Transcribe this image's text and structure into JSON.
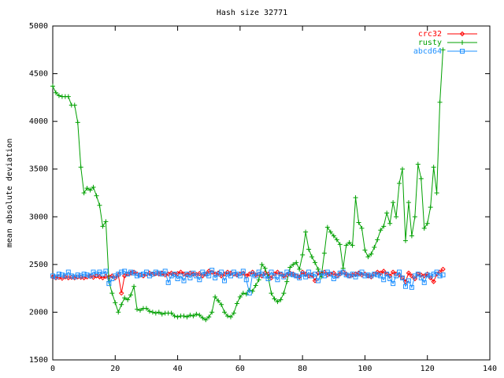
{
  "chart_data": {
    "type": "line",
    "title": "Hash size 32771",
    "y_label": "mean absolute deviation",
    "x": [
      0,
      1,
      2,
      3,
      4,
      5,
      6,
      7,
      8,
      9,
      10,
      11,
      12,
      13,
      14,
      15,
      16,
      17,
      18,
      19,
      20,
      21,
      22,
      23,
      24,
      25,
      26,
      27,
      28,
      29,
      30,
      31,
      32,
      33,
      34,
      35,
      36,
      37,
      38,
      39,
      40,
      41,
      42,
      43,
      44,
      45,
      46,
      47,
      48,
      49,
      50,
      51,
      52,
      53,
      54,
      55,
      56,
      57,
      58,
      59,
      60,
      61,
      62,
      63,
      64,
      65,
      66,
      67,
      68,
      69,
      70,
      71,
      72,
      73,
      74,
      75,
      76,
      77,
      78,
      79,
      80,
      81,
      82,
      83,
      84,
      85,
      86,
      87,
      88,
      89,
      90,
      91,
      92,
      93,
      94,
      95,
      96,
      97,
      98,
      99,
      100,
      101,
      102,
      103,
      104,
      105,
      106,
      107,
      108,
      109,
      110,
      111,
      112,
      113,
      114,
      115,
      116,
      117,
      118,
      119,
      120,
      121,
      122,
      123,
      124,
      125
    ],
    "series": [
      {
        "name": "crc32",
        "color": "#ff0000",
        "marker": "diamond",
        "values": [
          2370,
          2360,
          2365,
          2355,
          2370,
          2360,
          2365,
          2360,
          2370,
          2365,
          2360,
          2370,
          2375,
          2365,
          2380,
          2370,
          2360,
          2375,
          2370,
          2380,
          2360,
          2390,
          2200,
          2380,
          2400,
          2410,
          2420,
          2400,
          2390,
          2380,
          2400,
          2410,
          2395,
          2405,
          2400,
          2410,
          2390,
          2400,
          2410,
          2395,
          2405,
          2420,
          2400,
          2390,
          2410,
          2400,
          2395,
          2405,
          2380,
          2400,
          2430,
          2420,
          2400,
          2410,
          2380,
          2400,
          2420,
          2410,
          2400,
          2390,
          2400,
          2410,
          2380,
          2400,
          2420,
          2390,
          2400,
          2380,
          2410,
          2400,
          2360,
          2400,
          2420,
          2400,
          2380,
          2390,
          2410,
          2400,
          2380,
          2370,
          2420,
          2400,
          2380,
          2390,
          2330,
          2410,
          2400,
          2420,
          2390,
          2400,
          2410,
          2380,
          2400,
          2420,
          2400,
          2380,
          2390,
          2400,
          2410,
          2390,
          2400,
          2380,
          2370,
          2400,
          2420,
          2410,
          2430,
          2400,
          2380,
          2420,
          2400,
          2390,
          2360,
          2320,
          2410,
          2380,
          2350,
          2400,
          2390,
          2380,
          2400,
          2360,
          2320,
          2400,
          2420,
          2450
        ]
      },
      {
        "name": "rusty",
        "color": "#00a000",
        "marker": "plus",
        "values": [
          4370,
          4300,
          4270,
          4260,
          4260,
          4260,
          4170,
          4170,
          3990,
          3520,
          3250,
          3300,
          3280,
          3310,
          3220,
          3120,
          2900,
          2950,
          2320,
          2200,
          2100,
          2000,
          2080,
          2150,
          2130,
          2180,
          2270,
          2030,
          2020,
          2040,
          2040,
          2010,
          2000,
          1990,
          2000,
          1980,
          1990,
          1990,
          1990,
          1960,
          1950,
          1960,
          1960,
          1950,
          1970,
          1960,
          1980,
          1970,
          1940,
          1920,
          1950,
          2000,
          2160,
          2120,
          2080,
          2000,
          1960,
          1950,
          1990,
          2090,
          2160,
          2200,
          2190,
          2230,
          2220,
          2280,
          2340,
          2500,
          2460,
          2370,
          2200,
          2140,
          2110,
          2130,
          2200,
          2320,
          2470,
          2500,
          2520,
          2450,
          2600,
          2840,
          2660,
          2580,
          2520,
          2450,
          2370,
          2620,
          2890,
          2840,
          2800,
          2760,
          2710,
          2460,
          2700,
          2730,
          2700,
          3200,
          2940,
          2880,
          2650,
          2580,
          2610,
          2680,
          2760,
          2860,
          2900,
          3040,
          2930,
          3150,
          3000,
          3350,
          3500,
          2750,
          3150,
          2800,
          3000,
          3550,
          3400,
          2880,
          2930,
          3100,
          3520,
          3250,
          4200,
          4750
        ]
      },
      {
        "name": "abcd64",
        "color": "#1e90ff",
        "marker": "square",
        "values": [
          2380,
          2370,
          2400,
          2390,
          2380,
          2420,
          2380,
          2370,
          2390,
          2380,
          2400,
          2390,
          2380,
          2420,
          2400,
          2420,
          2400,
          2430,
          2300,
          2350,
          2380,
          2400,
          2420,
          2430,
          2400,
          2420,
          2410,
          2380,
          2390,
          2400,
          2420,
          2380,
          2400,
          2420,
          2410,
          2400,
          2430,
          2310,
          2380,
          2400,
          2350,
          2380,
          2330,
          2400,
          2360,
          2410,
          2380,
          2340,
          2420,
          2400,
          2380,
          2440,
          2360,
          2400,
          2420,
          2330,
          2400,
          2380,
          2420,
          2400,
          2380,
          2430,
          2340,
          2200,
          2400,
          2380,
          2420,
          2400,
          2380,
          2350,
          2420,
          2380,
          2340,
          2400,
          2370,
          2420,
          2400,
          2390,
          2380,
          2360,
          2400,
          2370,
          2420,
          2380,
          2400,
          2330,
          2410,
          2380,
          2420,
          2400,
          2350,
          2380,
          2410,
          2420,
          2390,
          2380,
          2400,
          2370,
          2400,
          2420,
          2380,
          2390,
          2380,
          2400,
          2390,
          2380,
          2340,
          2400,
          2350,
          2300,
          2380,
          2420,
          2360,
          2270,
          2330,
          2260,
          2380,
          2400,
          2360,
          2310,
          2390,
          2380,
          2400,
          2420,
          2380,
          2390
        ]
      }
    ],
    "xlim": [
      0,
      140
    ],
    "xticks": [
      0,
      20,
      40,
      60,
      80,
      100,
      120,
      140
    ],
    "ylim": [
      1500,
      5000
    ],
    "yticks": [
      1500,
      2000,
      2500,
      3000,
      3500,
      4000,
      4500,
      5000
    ],
    "legend": "top-right"
  }
}
